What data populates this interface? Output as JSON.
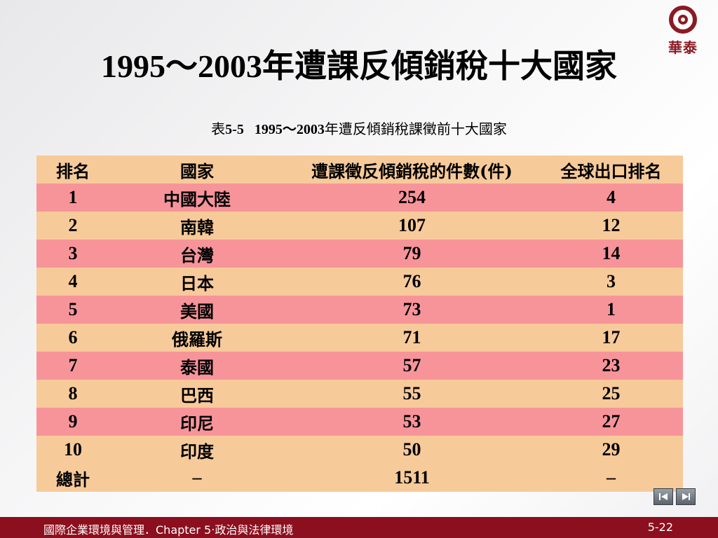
{
  "logo_text": "華泰",
  "title": "1995～2003年遭課反傾銷稅十大國家",
  "caption": {
    "prefix": "表",
    "label": "5-5   1995～2003",
    "rest": "年遭反傾銷稅課徵前十大國家"
  },
  "table": {
    "headers": [
      "排名",
      "國家",
      "遭課徵反傾銷稅的件數(件)",
      "全球出口排名"
    ],
    "rows": [
      [
        "1",
        "中國大陸",
        "254",
        "4"
      ],
      [
        "2",
        "南韓",
        "107",
        "12"
      ],
      [
        "3",
        "台灣",
        "79",
        "14"
      ],
      [
        "4",
        "日本",
        "76",
        "3"
      ],
      [
        "5",
        "美國",
        "73",
        "1"
      ],
      [
        "6",
        "俄羅斯",
        "71",
        "17"
      ],
      [
        "7",
        "泰國",
        "57",
        "23"
      ],
      [
        "8",
        "巴西",
        "55",
        "25"
      ],
      [
        "9",
        "印尼",
        "53",
        "27"
      ],
      [
        "10",
        "印度",
        "50",
        "29"
      ]
    ],
    "total": [
      "總計",
      "–",
      "1511",
      "–"
    ]
  },
  "nav": {
    "first_icon": "first-slide-icon",
    "next_icon": "next-slide-icon"
  },
  "footer": {
    "course": "國際企業環境與管理．Chapter 5‧政治與法律環境",
    "page": "5-22"
  },
  "colors": {
    "header_row": "#f7ca9a",
    "pink_row": "#f7949a",
    "footer_bar": "#8b0f1e"
  }
}
